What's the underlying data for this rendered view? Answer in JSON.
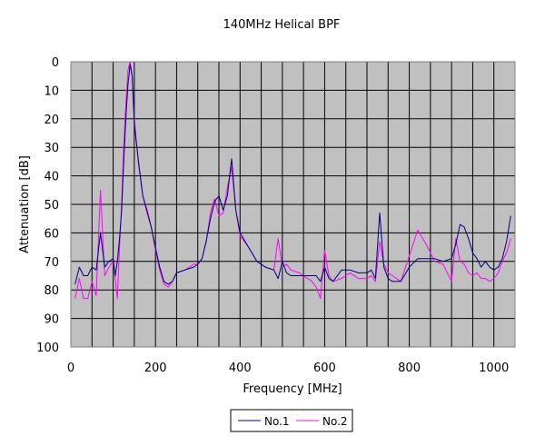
{
  "chart_data": {
    "type": "line",
    "title": "140MHz Helical BPF",
    "xlabel": "Frequency [MHz]",
    "ylabel": "Attenuation [dB]",
    "xlim": [
      0,
      1050
    ],
    "ylim": [
      0,
      100
    ],
    "y_axis_inverted": true,
    "x_ticks": [
      0,
      200,
      400,
      600,
      800,
      1000
    ],
    "y_ticks": [
      0,
      10,
      20,
      30,
      40,
      50,
      60,
      70,
      80,
      90,
      100
    ],
    "x_gridlines_every": 50,
    "grid": true,
    "plot_background": "#c0c0c0",
    "legend_position": "bottom",
    "series": [
      {
        "name": "No.1",
        "color": "#000080",
        "points": [
          [
            10,
            78
          ],
          [
            20,
            72
          ],
          [
            30,
            75
          ],
          [
            40,
            75
          ],
          [
            50,
            72
          ],
          [
            60,
            73
          ],
          [
            70,
            60
          ],
          [
            80,
            72
          ],
          [
            90,
            70
          ],
          [
            100,
            69
          ],
          [
            105,
            75
          ],
          [
            110,
            70
          ],
          [
            115,
            62
          ],
          [
            120,
            52
          ],
          [
            125,
            35
          ],
          [
            130,
            20
          ],
          [
            135,
            8
          ],
          [
            140,
            1
          ],
          [
            145,
            5
          ],
          [
            150,
            22
          ],
          [
            160,
            35
          ],
          [
            170,
            47
          ],
          [
            180,
            52
          ],
          [
            190,
            58
          ],
          [
            200,
            65
          ],
          [
            210,
            72
          ],
          [
            220,
            77
          ],
          [
            230,
            78
          ],
          [
            240,
            77
          ],
          [
            250,
            74
          ],
          [
            270,
            73
          ],
          [
            290,
            72
          ],
          [
            300,
            71
          ],
          [
            310,
            69
          ],
          [
            320,
            63
          ],
          [
            330,
            55
          ],
          [
            340,
            49
          ],
          [
            350,
            47
          ],
          [
            360,
            52
          ],
          [
            370,
            47
          ],
          [
            380,
            34
          ],
          [
            385,
            43
          ],
          [
            390,
            52
          ],
          [
            400,
            60
          ],
          [
            420,
            65
          ],
          [
            440,
            70
          ],
          [
            460,
            72
          ],
          [
            480,
            73
          ],
          [
            490,
            76
          ],
          [
            500,
            70
          ],
          [
            510,
            74
          ],
          [
            520,
            75
          ],
          [
            540,
            75
          ],
          [
            560,
            75
          ],
          [
            570,
            75
          ],
          [
            580,
            75
          ],
          [
            590,
            77
          ],
          [
            600,
            72
          ],
          [
            610,
            76
          ],
          [
            620,
            77
          ],
          [
            640,
            73
          ],
          [
            660,
            73
          ],
          [
            680,
            74
          ],
          [
            700,
            74
          ],
          [
            710,
            73
          ],
          [
            720,
            76
          ],
          [
            730,
            53
          ],
          [
            740,
            72
          ],
          [
            750,
            76
          ],
          [
            760,
            77
          ],
          [
            780,
            77
          ],
          [
            800,
            72
          ],
          [
            820,
            69
          ],
          [
            840,
            69
          ],
          [
            860,
            69
          ],
          [
            880,
            70
          ],
          [
            900,
            69
          ],
          [
            910,
            64
          ],
          [
            920,
            57
          ],
          [
            930,
            58
          ],
          [
            940,
            62
          ],
          [
            950,
            67
          ],
          [
            960,
            69
          ],
          [
            970,
            72
          ],
          [
            980,
            70
          ],
          [
            990,
            72
          ],
          [
            1000,
            73
          ],
          [
            1010,
            72
          ],
          [
            1020,
            69
          ],
          [
            1030,
            63
          ],
          [
            1040,
            54
          ]
        ]
      },
      {
        "name": "No.2",
        "color": "#ff00ff",
        "points": [
          [
            10,
            83
          ],
          [
            20,
            76
          ],
          [
            30,
            83
          ],
          [
            40,
            83
          ],
          [
            50,
            77
          ],
          [
            60,
            82
          ],
          [
            70,
            45
          ],
          [
            80,
            75
          ],
          [
            90,
            72
          ],
          [
            100,
            70
          ],
          [
            110,
            83
          ],
          [
            115,
            65
          ],
          [
            120,
            50
          ],
          [
            125,
            30
          ],
          [
            130,
            15
          ],
          [
            135,
            3
          ],
          [
            140,
            0
          ],
          [
            145,
            5
          ],
          [
            150,
            20
          ],
          [
            160,
            36
          ],
          [
            170,
            47
          ],
          [
            180,
            53
          ],
          [
            190,
            58
          ],
          [
            200,
            66
          ],
          [
            210,
            73
          ],
          [
            220,
            78
          ],
          [
            230,
            79
          ],
          [
            240,
            77
          ],
          [
            250,
            74
          ],
          [
            270,
            73
          ],
          [
            290,
            71
          ],
          [
            300,
            71
          ],
          [
            310,
            69
          ],
          [
            320,
            63
          ],
          [
            330,
            53
          ],
          [
            340,
            48
          ],
          [
            350,
            54
          ],
          [
            360,
            53
          ],
          [
            370,
            44
          ],
          [
            380,
            37
          ],
          [
            390,
            52
          ],
          [
            400,
            61
          ],
          [
            420,
            65
          ],
          [
            440,
            70
          ],
          [
            460,
            72
          ],
          [
            480,
            73
          ],
          [
            490,
            62
          ],
          [
            500,
            72
          ],
          [
            510,
            71
          ],
          [
            520,
            73
          ],
          [
            540,
            74
          ],
          [
            560,
            76
          ],
          [
            570,
            77
          ],
          [
            580,
            79
          ],
          [
            590,
            83
          ],
          [
            600,
            66
          ],
          [
            610,
            75
          ],
          [
            620,
            77
          ],
          [
            640,
            76
          ],
          [
            660,
            74
          ],
          [
            680,
            76
          ],
          [
            700,
            76
          ],
          [
            710,
            75
          ],
          [
            720,
            77
          ],
          [
            730,
            63
          ],
          [
            740,
            71
          ],
          [
            750,
            74
          ],
          [
            760,
            75
          ],
          [
            780,
            77
          ],
          [
            800,
            68
          ],
          [
            820,
            59
          ],
          [
            840,
            64
          ],
          [
            860,
            70
          ],
          [
            880,
            71
          ],
          [
            900,
            77
          ],
          [
            910,
            62
          ],
          [
            920,
            70
          ],
          [
            930,
            71
          ],
          [
            940,
            74
          ],
          [
            950,
            75
          ],
          [
            960,
            74
          ],
          [
            970,
            76
          ],
          [
            980,
            76
          ],
          [
            990,
            77
          ],
          [
            1000,
            76
          ],
          [
            1010,
            74
          ],
          [
            1020,
            70
          ],
          [
            1030,
            67
          ],
          [
            1040,
            62
          ]
        ]
      }
    ]
  }
}
